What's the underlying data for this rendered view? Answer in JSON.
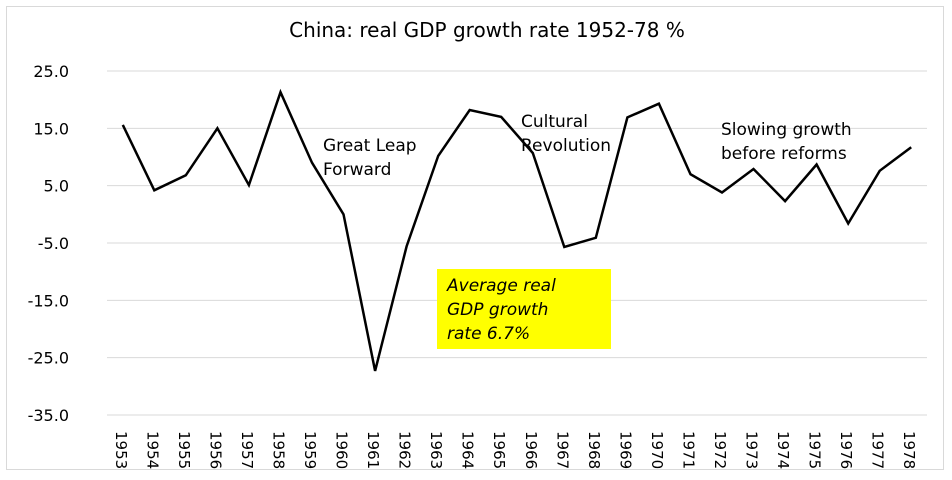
{
  "chart_data": {
    "type": "line",
    "title": "China: real GDP growth rate 1952-78 %",
    "xlabel": "",
    "ylabel": "",
    "ylim": [
      -35,
      25
    ],
    "yticks": [
      "25.0",
      "15.0",
      "5.0",
      "-5.0",
      "-15.0",
      "-25.0",
      "-35.0"
    ],
    "ytick_values": [
      25,
      15,
      5,
      -5,
      -15,
      -25,
      -35
    ],
    "grid": true,
    "categories": [
      "1953",
      "1954",
      "1955",
      "1956",
      "1957",
      "1958",
      "1959",
      "1960",
      "1961",
      "1962",
      "1963",
      "1964",
      "1965",
      "1966",
      "1967",
      "1968",
      "1969",
      "1970",
      "1971",
      "1972",
      "1973",
      "1974",
      "1975",
      "1976",
      "1977",
      "1978"
    ],
    "series": [
      {
        "name": "",
        "color": "#000000",
        "values": [
          15.6,
          4.2,
          6.8,
          15.0,
          5.1,
          21.3,
          9.0,
          0.0,
          -27.3,
          -5.6,
          10.2,
          18.2,
          17.0,
          10.7,
          -5.7,
          -4.1,
          16.9,
          19.3,
          7.0,
          3.8,
          7.9,
          2.3,
          8.7,
          -1.6,
          7.6,
          11.7
        ]
      }
    ],
    "annotations": [
      {
        "id": "great-leap",
        "lines": [
          "Great Leap",
          "Forward"
        ]
      },
      {
        "id": "cultural-revolution",
        "lines": [
          "Cultural",
          "Revolution"
        ]
      },
      {
        "id": "slowing-growth",
        "lines": [
          "Slowing growth",
          "before reforms"
        ]
      }
    ],
    "average_box": {
      "lines": [
        "Average real",
        "GDP growth",
        "rate 6.7%"
      ],
      "background": "#ffff00"
    }
  }
}
